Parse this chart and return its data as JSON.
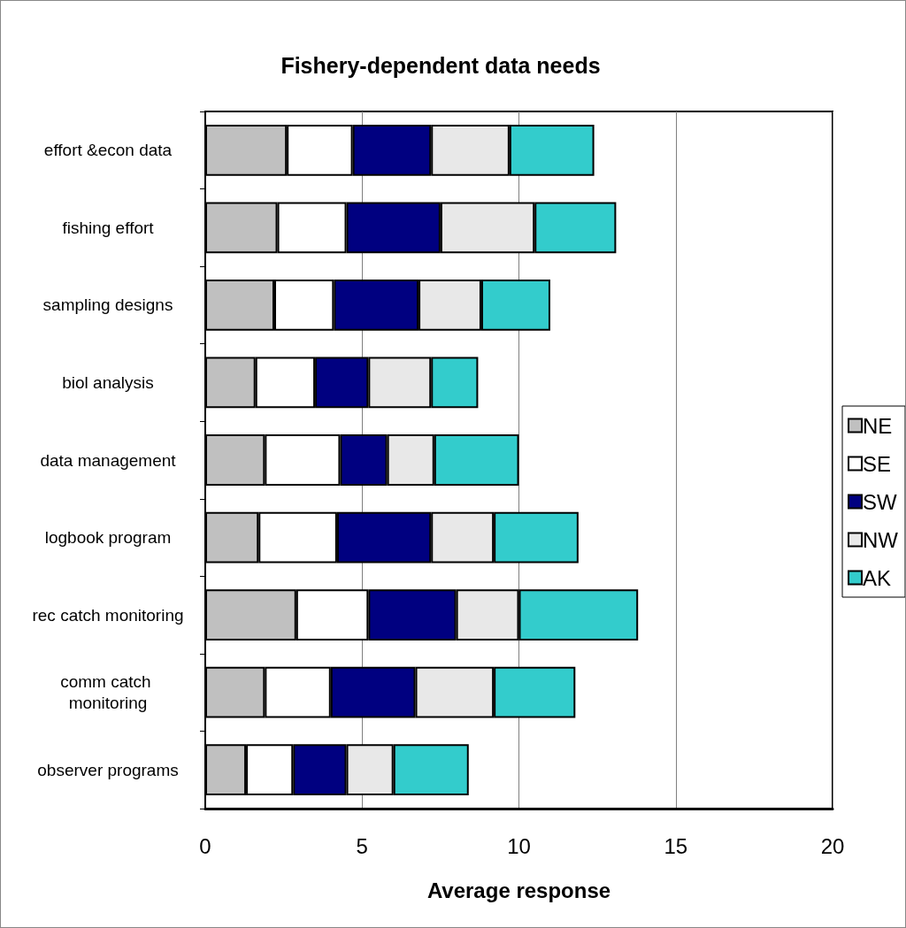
{
  "chart_data": {
    "type": "bar",
    "title": "Fishery-dependent data needs",
    "xlabel": "Average response",
    "orientation": "horizontal",
    "stacked": true,
    "categories": [
      "effort &econ data",
      "fishing effort",
      "sampling designs",
      "biol analysis",
      "data management",
      "logbook program",
      "rec catch monitoring",
      "comm catch monitoring",
      "observer programs"
    ],
    "series": [
      {
        "name": "NE",
        "color": "#c0c0c0",
        "values": [
          2.6,
          2.3,
          2.2,
          1.6,
          1.9,
          1.7,
          2.9,
          1.9,
          1.3
        ]
      },
      {
        "name": "SE",
        "color": "#ffffff",
        "values": [
          2.1,
          2.2,
          1.9,
          1.9,
          2.4,
          2.5,
          2.3,
          2.1,
          1.5
        ]
      },
      {
        "name": "SW",
        "color": "#000080",
        "values": [
          2.5,
          3.0,
          2.7,
          1.7,
          1.5,
          3.0,
          2.8,
          2.7,
          1.7
        ]
      },
      {
        "name": "NW",
        "color": "#e8e8e8",
        "values": [
          2.5,
          3.0,
          2.0,
          2.0,
          1.5,
          2.0,
          2.0,
          2.5,
          1.5
        ]
      },
      {
        "name": "AK",
        "color": "#33cccc",
        "values": [
          2.7,
          2.6,
          2.2,
          1.5,
          2.7,
          2.7,
          3.8,
          2.6,
          2.4
        ]
      }
    ],
    "xlim": [
      0,
      20
    ],
    "xticks": [
      0,
      5,
      10,
      15,
      20
    ],
    "grid": "x",
    "legend": "right"
  }
}
